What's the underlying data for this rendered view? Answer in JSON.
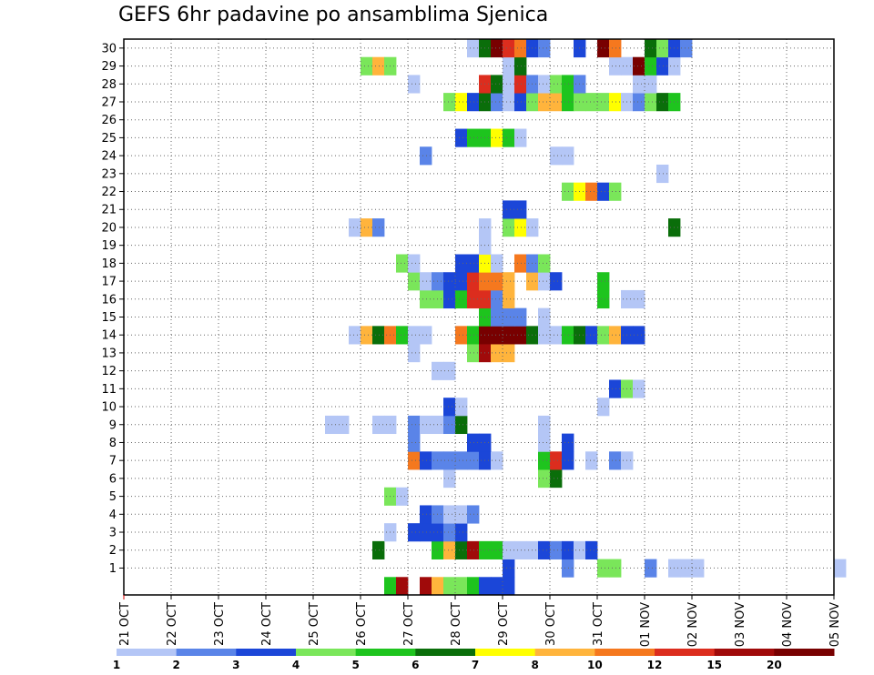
{
  "chart_data": {
    "type": "heatmap",
    "title": "GEFS 6hr padavine po ansamblima Sjenica",
    "xlabel": "",
    "ylabel": "",
    "x_tick_labels": [
      "21 OCT",
      "22 OCT",
      "23 OCT",
      "24 OCT",
      "25 OCT",
      "26 OCT",
      "27 OCT",
      "28 OCT",
      "29 OCT",
      "30 OCT",
      "31 OCT",
      "01 NOV",
      "02 NOV",
      "03 NOV",
      "04 NOV",
      "05 NOV"
    ],
    "y_tick_labels": [
      "1",
      "2",
      "3",
      "4",
      "5",
      "6",
      "7",
      "8",
      "9",
      "10",
      "11",
      "12",
      "13",
      "14",
      "15",
      "16",
      "17",
      "18",
      "19",
      "20",
      "21",
      "22",
      "23",
      "24",
      "25",
      "26",
      "27",
      "28",
      "29",
      "30"
    ],
    "xlim_days": [
      0,
      15
    ],
    "ylim_members": [
      0,
      30
    ],
    "grid": true,
    "colorbar": {
      "position": "bottom",
      "labels": [
        "1",
        "2",
        "3",
        "4",
        "5",
        "6",
        "7",
        "8",
        "10",
        "12",
        "15",
        "20"
      ],
      "colors": [
        "#b4c6f6",
        "#5a84e8",
        "#1b46d8",
        "#7ae65a",
        "#1ec41e",
        "#0a6e0a",
        "#ffff00",
        "#ffb43c",
        "#f5781e",
        "#dc2d1e",
        "#a00a0a",
        "#780000"
      ]
    },
    "rows": [
      {
        "member": 0,
        "cells": [
          [
            22,
            4
          ],
          [
            23,
            10
          ],
          [
            25,
            10
          ],
          [
            26,
            7
          ],
          [
            27,
            3
          ],
          [
            28,
            3
          ],
          [
            29,
            4
          ],
          [
            30,
            2
          ],
          [
            31,
            2
          ],
          [
            32,
            2
          ]
        ]
      },
      {
        "member": 1,
        "cells": [
          [
            32,
            2
          ],
          [
            37,
            1
          ],
          [
            40,
            3
          ],
          [
            41,
            3
          ],
          [
            44,
            1
          ],
          [
            46,
            0
          ],
          [
            47,
            0
          ],
          [
            48,
            0
          ],
          [
            60,
            0
          ]
        ]
      },
      {
        "member": 2,
        "cells": [
          [
            21,
            5
          ],
          [
            26,
            4
          ],
          [
            27,
            7
          ],
          [
            28,
            5
          ],
          [
            29,
            10
          ],
          [
            30,
            4
          ],
          [
            31,
            4
          ],
          [
            32,
            0
          ],
          [
            33,
            0
          ],
          [
            34,
            0
          ],
          [
            35,
            2
          ],
          [
            36,
            1
          ],
          [
            37,
            2
          ],
          [
            38,
            0
          ],
          [
            39,
            2
          ]
        ]
      },
      {
        "member": 3,
        "cells": [
          [
            22,
            0
          ],
          [
            24,
            2
          ],
          [
            25,
            2
          ],
          [
            26,
            2
          ],
          [
            27,
            1
          ],
          [
            28,
            2
          ]
        ]
      },
      {
        "member": 4,
        "cells": [
          [
            25,
            2
          ],
          [
            26,
            1
          ],
          [
            27,
            0
          ],
          [
            28,
            0
          ],
          [
            29,
            1
          ]
        ]
      },
      {
        "member": 5,
        "cells": [
          [
            22,
            3
          ],
          [
            23,
            0
          ]
        ]
      },
      {
        "member": 6,
        "cells": [
          [
            27,
            0
          ],
          [
            35,
            3
          ],
          [
            36,
            5
          ]
        ]
      },
      {
        "member": 7,
        "cells": [
          [
            24,
            8
          ],
          [
            25,
            2
          ],
          [
            26,
            1
          ],
          [
            27,
            1
          ],
          [
            28,
            1
          ],
          [
            29,
            1
          ],
          [
            30,
            2
          ],
          [
            31,
            0
          ],
          [
            35,
            4
          ],
          [
            36,
            9
          ],
          [
            37,
            2
          ],
          [
            39,
            0
          ],
          [
            41,
            1
          ],
          [
            42,
            0
          ]
        ]
      },
      {
        "member": 8,
        "cells": [
          [
            24,
            1
          ],
          [
            29,
            2
          ],
          [
            30,
            2
          ],
          [
            35,
            0
          ],
          [
            37,
            2
          ]
        ]
      },
      {
        "member": 9,
        "cells": [
          [
            17,
            0
          ],
          [
            18,
            0
          ],
          [
            21,
            0
          ],
          [
            22,
            0
          ],
          [
            24,
            1
          ],
          [
            25,
            0
          ],
          [
            26,
            0
          ],
          [
            27,
            1
          ],
          [
            28,
            5
          ],
          [
            35,
            0
          ]
        ]
      },
      {
        "member": 10,
        "cells": [
          [
            27,
            2
          ],
          [
            28,
            0
          ],
          [
            40,
            0
          ]
        ]
      },
      {
        "member": 11,
        "cells": [
          [
            41,
            2
          ],
          [
            42,
            3
          ],
          [
            43,
            0
          ]
        ]
      },
      {
        "member": 12,
        "cells": [
          [
            26,
            0
          ],
          [
            27,
            0
          ]
        ]
      },
      {
        "member": 13,
        "cells": [
          [
            24,
            0
          ],
          [
            29,
            3
          ],
          [
            30,
            10
          ],
          [
            31,
            7
          ],
          [
            32,
            7
          ]
        ]
      },
      {
        "member": 14,
        "cells": [
          [
            19,
            0
          ],
          [
            20,
            7
          ],
          [
            21,
            5
          ],
          [
            22,
            8
          ],
          [
            23,
            4
          ],
          [
            24,
            0
          ],
          [
            25,
            0
          ],
          [
            28,
            8
          ],
          [
            29,
            4
          ],
          [
            30,
            11
          ],
          [
            31,
            11
          ],
          [
            32,
            11
          ],
          [
            33,
            11
          ],
          [
            34,
            5
          ],
          [
            35,
            0
          ],
          [
            36,
            0
          ],
          [
            37,
            4
          ],
          [
            38,
            5
          ],
          [
            39,
            2
          ],
          [
            40,
            3
          ],
          [
            41,
            7
          ],
          [
            42,
            2
          ],
          [
            43,
            2
          ]
        ]
      },
      {
        "member": 15,
        "cells": [
          [
            30,
            4
          ],
          [
            31,
            1
          ],
          [
            32,
            1
          ],
          [
            33,
            1
          ],
          [
            35,
            0
          ]
        ]
      },
      {
        "member": 16,
        "cells": [
          [
            25,
            3
          ],
          [
            26,
            3
          ],
          [
            27,
            2
          ],
          [
            28,
            4
          ],
          [
            29,
            9
          ],
          [
            30,
            9
          ],
          [
            31,
            1
          ],
          [
            32,
            7
          ],
          [
            40,
            4
          ],
          [
            42,
            0
          ],
          [
            43,
            0
          ]
        ]
      },
      {
        "member": 17,
        "cells": [
          [
            24,
            3
          ],
          [
            25,
            0
          ],
          [
            26,
            1
          ],
          [
            27,
            2
          ],
          [
            28,
            2
          ],
          [
            29,
            9
          ],
          [
            30,
            8
          ],
          [
            31,
            8
          ],
          [
            32,
            7
          ],
          [
            34,
            7
          ],
          [
            35,
            0
          ],
          [
            36,
            2
          ],
          [
            40,
            4
          ]
        ]
      },
      {
        "member": 18,
        "cells": [
          [
            23,
            3
          ],
          [
            24,
            0
          ],
          [
            28,
            2
          ],
          [
            29,
            2
          ],
          [
            30,
            6
          ],
          [
            31,
            0
          ],
          [
            33,
            8
          ],
          [
            34,
            1
          ],
          [
            35,
            3
          ]
        ]
      },
      {
        "member": 19,
        "cells": [
          [
            30,
            0
          ]
        ]
      },
      {
        "member": 20,
        "cells": [
          [
            19,
            0
          ],
          [
            20,
            7
          ],
          [
            21,
            1
          ],
          [
            30,
            0
          ],
          [
            32,
            3
          ],
          [
            33,
            6
          ],
          [
            34,
            0
          ],
          [
            46,
            5
          ]
        ]
      },
      {
        "member": 21,
        "cells": [
          [
            32,
            2
          ],
          [
            33,
            2
          ]
        ]
      },
      {
        "member": 22,
        "cells": [
          [
            37,
            3
          ],
          [
            38,
            6
          ],
          [
            39,
            8
          ],
          [
            40,
            2
          ],
          [
            41,
            3
          ]
        ]
      },
      {
        "member": 23,
        "cells": [
          [
            45,
            0
          ]
        ]
      },
      {
        "member": 24,
        "cells": [
          [
            25,
            1
          ],
          [
            36,
            0
          ],
          [
            37,
            0
          ]
        ]
      },
      {
        "member": 25,
        "cells": [
          [
            28,
            2
          ],
          [
            29,
            4
          ],
          [
            30,
            4
          ],
          [
            31,
            6
          ],
          [
            32,
            4
          ],
          [
            33,
            0
          ]
        ]
      },
      {
        "member": 27,
        "cells": [
          [
            27,
            3
          ],
          [
            28,
            6
          ],
          [
            29,
            2
          ],
          [
            30,
            5
          ],
          [
            31,
            1
          ],
          [
            32,
            0
          ],
          [
            33,
            2
          ],
          [
            34,
            3
          ],
          [
            35,
            7
          ],
          [
            36,
            7
          ],
          [
            37,
            4
          ],
          [
            38,
            3
          ],
          [
            39,
            3
          ],
          [
            40,
            3
          ],
          [
            41,
            6
          ],
          [
            42,
            0
          ],
          [
            43,
            1
          ],
          [
            44,
            3
          ],
          [
            45,
            5
          ],
          [
            46,
            4
          ]
        ]
      },
      {
        "member": 28,
        "cells": [
          [
            24,
            0
          ],
          [
            30,
            9
          ],
          [
            31,
            5
          ],
          [
            32,
            0
          ],
          [
            33,
            9
          ],
          [
            34,
            1
          ],
          [
            35,
            0
          ],
          [
            36,
            3
          ],
          [
            37,
            4
          ],
          [
            38,
            1
          ],
          [
            43,
            0
          ],
          [
            44,
            0
          ]
        ]
      },
      {
        "member": 29,
        "cells": [
          [
            20,
            3
          ],
          [
            21,
            7
          ],
          [
            22,
            3
          ],
          [
            32,
            0
          ],
          [
            33,
            5
          ],
          [
            41,
            0
          ],
          [
            42,
            0
          ],
          [
            43,
            11
          ],
          [
            44,
            4
          ],
          [
            45,
            2
          ],
          [
            46,
            0
          ]
        ]
      },
      {
        "member": 30,
        "cells": [
          [
            29,
            0
          ],
          [
            30,
            5
          ],
          [
            31,
            11
          ],
          [
            32,
            9
          ],
          [
            33,
            8
          ],
          [
            34,
            2
          ],
          [
            35,
            1
          ],
          [
            38,
            2
          ],
          [
            40,
            11
          ],
          [
            41,
            8
          ],
          [
            44,
            5
          ],
          [
            45,
            3
          ],
          [
            46,
            2
          ],
          [
            47,
            1
          ]
        ]
      }
    ]
  }
}
